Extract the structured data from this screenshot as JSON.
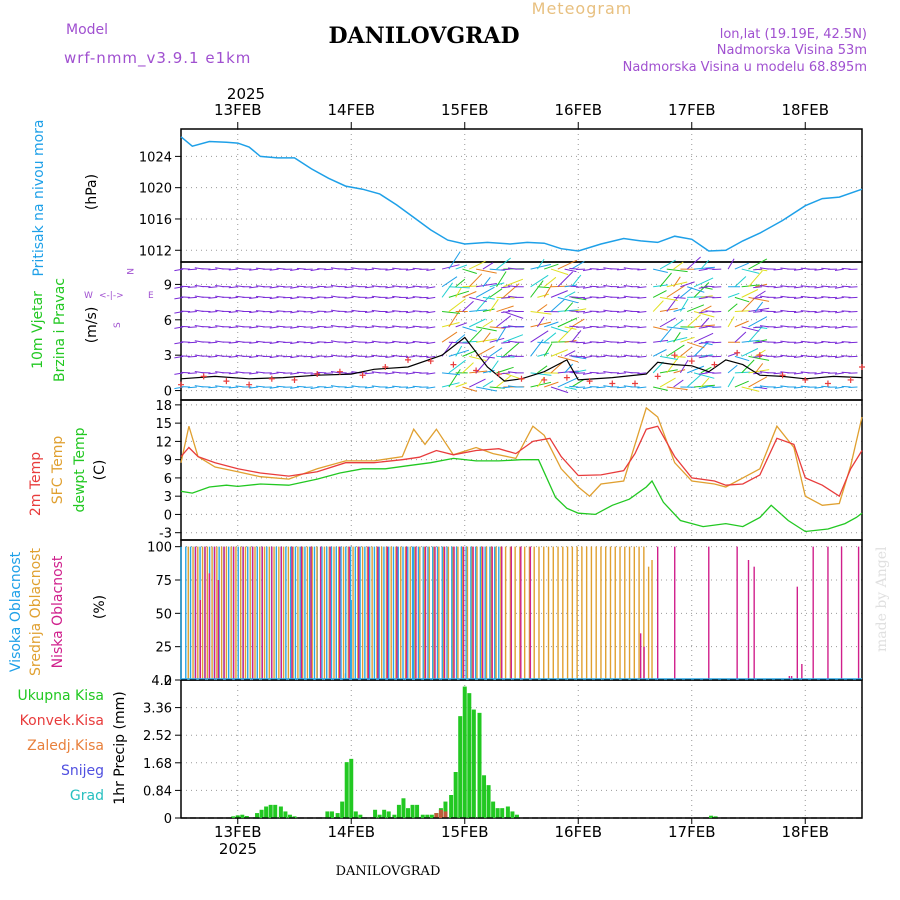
{
  "header": {
    "model_label": "Model",
    "model_name": "wrf-nmm_v3.9.1  e1km",
    "station": "DANILOVGRAD",
    "meteogram": "Meteogram",
    "lonlat": "lon,lat (19.19E, 42.5N)",
    "elevation": "Nadmorska Visina 53m",
    "elevation_model": "Nadmorska Visina u modelu 68.895m",
    "footer_station": "DANILOVGRAD",
    "watermark": "made by Angel"
  },
  "time_axis": {
    "year_label": "2025",
    "labels": [
      "13FEB",
      "14FEB",
      "15FEB",
      "16FEB",
      "17FEB",
      "18FEB"
    ],
    "label_days": [
      1,
      2,
      3,
      4,
      5,
      6
    ],
    "range_days": [
      0.5,
      6.5
    ]
  },
  "colors": {
    "pressure": "#1ea0e8",
    "temp2m": "#e83c3c",
    "sfc_temp": "#e0a030",
    "dewpt": "#22c822",
    "wind_barb": "#7a2ad8",
    "wind_speed": "#000000",
    "gust": "#e83c3c",
    "cloud_high": "#28a8e8",
    "cloud_mid": "#e0a030",
    "cloud_low": "#d0208c",
    "precip": "#22c822"
  },
  "chart_data": [
    {
      "type": "line",
      "panel": "pressure",
      "title": "Pritisak na nivou mora",
      "ylabel": "(hPa)",
      "yticks": [
        1012,
        1016,
        1020,
        1024
      ],
      "ylim": [
        1010.5,
        1027.5
      ],
      "series": [
        {
          "name": "Pritisak na nivou mora",
          "x": [
            0.5,
            0.6,
            0.75,
            0.9,
            1.0,
            1.1,
            1.2,
            1.35,
            1.5,
            1.65,
            1.8,
            1.95,
            2.1,
            2.25,
            2.4,
            2.55,
            2.7,
            2.85,
            3.0,
            3.2,
            3.4,
            3.55,
            3.7,
            3.85,
            4.0,
            4.2,
            4.4,
            4.55,
            4.7,
            4.85,
            5.0,
            5.15,
            5.3,
            5.45,
            5.6,
            5.8,
            6.0,
            6.15,
            6.3,
            6.5
          ],
          "y": [
            1026.5,
            1025.3,
            1025.9,
            1025.8,
            1025.7,
            1025.2,
            1024.0,
            1023.8,
            1023.8,
            1022.4,
            1021.2,
            1020.2,
            1019.8,
            1019.2,
            1017.8,
            1016.2,
            1014.6,
            1013.3,
            1012.8,
            1013.0,
            1012.8,
            1013.0,
            1012.9,
            1012.2,
            1011.9,
            1012.8,
            1013.5,
            1013.2,
            1013.0,
            1013.8,
            1013.4,
            1011.9,
            1012.0,
            1013.2,
            1014.2,
            1015.8,
            1017.7,
            1018.6,
            1018.8,
            1019.8
          ]
        }
      ]
    },
    {
      "type": "line",
      "panel": "wind",
      "title": "10m Vjetar Brzina i Pravac",
      "ylabel": "(m/s)",
      "compass": [
        "W",
        "<-|->",
        "E",
        "N",
        "S"
      ],
      "yticks": [
        0,
        3,
        6,
        9
      ],
      "ylim": [
        -0.8,
        10.9
      ],
      "series": [
        {
          "name": "Brzina",
          "x": [
            0.5,
            0.8,
            1.1,
            1.4,
            1.7,
            2.0,
            2.2,
            2.5,
            2.8,
            3.0,
            3.2,
            3.35,
            3.5,
            3.7,
            3.9,
            4.0,
            4.3,
            4.6,
            4.7,
            4.85,
            5.0,
            5.15,
            5.3,
            5.45,
            5.6,
            5.8,
            6.0,
            6.25,
            6.5
          ],
          "y": [
            1.0,
            1.2,
            1.0,
            1.1,
            1.3,
            1.4,
            1.8,
            2.0,
            3.0,
            4.5,
            2.0,
            0.8,
            1.0,
            1.6,
            2.6,
            0.9,
            1.1,
            1.4,
            2.4,
            2.2,
            2.1,
            1.6,
            2.6,
            2.2,
            1.3,
            1.2,
            1.0,
            1.2,
            1.1
          ]
        },
        {
          "name": "Udari",
          "x": [
            0.5,
            0.7,
            0.9,
            1.1,
            1.3,
            1.5,
            1.7,
            1.9,
            2.1,
            2.3,
            2.5,
            2.7,
            2.9,
            3.1,
            3.3,
            3.5,
            3.7,
            3.9,
            4.1,
            4.3,
            4.5,
            4.7,
            4.85,
            5.0,
            5.2,
            5.4,
            5.6,
            5.8,
            6.0,
            6.2,
            6.4,
            6.5
          ],
          "y": [
            0.5,
            1.2,
            0.8,
            0.5,
            1.0,
            0.9,
            1.4,
            1.6,
            1.3,
            2.0,
            2.6,
            2.5,
            2.2,
            1.7,
            1.4,
            1.0,
            0.9,
            1.1,
            0.8,
            0.6,
            0.6,
            1.2,
            3.0,
            2.5,
            2.2,
            3.2,
            3.0,
            1.3,
            0.9,
            0.6,
            0.9,
            2.0
          ]
        }
      ]
    },
    {
      "type": "line",
      "panel": "temperature",
      "title": "2m Temp / SFC Temp / dewpt Temp",
      "ylabel": "(C)",
      "yticks": [
        -3,
        0,
        3,
        6,
        9,
        12,
        15,
        18
      ],
      "ylim": [
        -4.2,
        18.8
      ],
      "series": [
        {
          "name": "2m Temp",
          "x": [
            0.5,
            0.57,
            0.65,
            0.8,
            1.0,
            1.2,
            1.45,
            1.7,
            1.95,
            2.2,
            2.45,
            2.6,
            2.75,
            2.9,
            3.1,
            3.3,
            3.45,
            3.6,
            3.75,
            3.85,
            4.0,
            4.2,
            4.4,
            4.5,
            4.6,
            4.7,
            4.85,
            5.0,
            5.2,
            5.3,
            5.45,
            5.6,
            5.75,
            5.9,
            6.0,
            6.15,
            6.3,
            6.4,
            6.5
          ],
          "y": [
            9.5,
            11.0,
            9.5,
            8.5,
            7.5,
            6.8,
            6.3,
            7.0,
            8.5,
            8.5,
            9.0,
            9.4,
            10.5,
            9.8,
            10.5,
            10.8,
            10.0,
            12.0,
            12.5,
            9.5,
            6.4,
            6.5,
            7.2,
            10.0,
            14.0,
            14.5,
            9.5,
            6.0,
            5.5,
            4.8,
            5.0,
            6.5,
            12.5,
            11.5,
            6.0,
            4.8,
            3.0,
            7.5,
            10.5
          ]
        },
        {
          "name": "SFC Temp",
          "x": [
            0.5,
            0.57,
            0.65,
            0.8,
            1.0,
            1.2,
            1.45,
            1.7,
            1.95,
            2.2,
            2.45,
            2.55,
            2.65,
            2.75,
            2.9,
            3.1,
            3.25,
            3.45,
            3.6,
            3.7,
            3.85,
            4.0,
            4.1,
            4.2,
            4.4,
            4.5,
            4.6,
            4.7,
            4.85,
            5.0,
            5.2,
            5.3,
            5.45,
            5.6,
            5.75,
            5.9,
            6.0,
            6.15,
            6.3,
            6.4,
            6.5
          ],
          "y": [
            8.5,
            14.5,
            9.5,
            7.8,
            7.0,
            6.2,
            5.8,
            7.5,
            8.8,
            8.8,
            9.5,
            14.0,
            11.5,
            14.0,
            9.8,
            11.0,
            10.0,
            9.2,
            14.5,
            13.0,
            7.5,
            4.5,
            3.0,
            5.0,
            5.5,
            11.5,
            17.5,
            16.0,
            8.5,
            5.5,
            5.0,
            4.5,
            6.0,
            7.5,
            14.5,
            11.0,
            3.0,
            1.5,
            1.8,
            8.0,
            16.0
          ]
        },
        {
          "name": "dewpt Temp",
          "x": [
            0.5,
            0.6,
            0.75,
            0.9,
            1.0,
            1.2,
            1.45,
            1.7,
            1.9,
            2.1,
            2.3,
            2.5,
            2.7,
            2.9,
            3.1,
            3.3,
            3.5,
            3.65,
            3.8,
            3.9,
            4.0,
            4.15,
            4.3,
            4.45,
            4.6,
            4.65,
            4.75,
            4.9,
            5.1,
            5.3,
            5.45,
            5.6,
            5.7,
            5.85,
            6.0,
            6.2,
            6.35,
            6.45,
            6.5
          ],
          "y": [
            3.8,
            3.5,
            4.5,
            4.8,
            4.6,
            5.0,
            4.8,
            5.8,
            6.8,
            7.5,
            7.5,
            8.0,
            8.5,
            9.2,
            8.8,
            8.8,
            9.0,
            9.0,
            2.8,
            1.0,
            0.2,
            0.0,
            1.5,
            2.5,
            4.5,
            5.5,
            2.0,
            -1.0,
            -2.0,
            -1.5,
            -2.0,
            -0.5,
            1.5,
            -1.0,
            -2.8,
            -2.4,
            -1.5,
            -0.5,
            0.2
          ]
        }
      ]
    },
    {
      "type": "bar",
      "panel": "cloud",
      "title": "Visoka Oblacnost / Srednja Oblacnost / Niska Oblacnost",
      "ylabel": "(%)",
      "yticks": [
        0,
        25,
        50,
        75,
        100
      ],
      "ylim": [
        0,
        105
      ],
      "series": [
        {
          "name": "Visoka Oblacnost",
          "segments": [
            {
              "from": 0.5,
              "to": 1.7,
              "step": 0.042,
              "value": 100
            },
            {
              "from": 1.7,
              "to": 2.55,
              "step": 0.042,
              "value": 100
            },
            {
              "from": 2.55,
              "to": 3.3,
              "step": 0.042,
              "value": 100
            }
          ],
          "points": [
            {
              "x": 1.95,
              "value": 5
            },
            {
              "x": 2.0,
              "value": 60
            },
            {
              "x": 3.3,
              "value": 100
            }
          ]
        },
        {
          "name": "Srednja Oblacnost",
          "segments": [
            {
              "from": 0.55,
              "to": 1.7,
              "step": 0.042,
              "value": 100
            },
            {
              "from": 1.75,
              "to": 4.6,
              "step": 0.042,
              "value": 100
            }
          ],
          "points": [
            {
              "x": 4.62,
              "value": 85
            },
            {
              "x": 4.65,
              "value": 90
            }
          ]
        },
        {
          "name": "Niska Oblacnost",
          "segments": [
            {
              "from": 0.6,
              "to": 1.4,
              "step": 0.084,
              "value": 100
            },
            {
              "from": 1.45,
              "to": 3.6,
              "step": 0.084,
              "value": 100
            }
          ],
          "points": [
            {
              "x": 0.67,
              "value": 60
            },
            {
              "x": 0.75,
              "value": 80
            },
            {
              "x": 0.83,
              "value": 75
            },
            {
              "x": 4.55,
              "value": 35
            },
            {
              "x": 4.58,
              "value": 25
            },
            {
              "x": 4.7,
              "value": 100
            },
            {
              "x": 4.85,
              "value": 100
            },
            {
              "x": 5.15,
              "value": 100
            },
            {
              "x": 5.4,
              "value": 100
            },
            {
              "x": 5.5,
              "value": 90
            },
            {
              "x": 5.55,
              "value": 85
            },
            {
              "x": 5.86,
              "value": 3
            },
            {
              "x": 5.88,
              "value": 3
            },
            {
              "x": 5.93,
              "value": 70
            },
            {
              "x": 5.97,
              "value": 12
            },
            {
              "x": 6.07,
              "value": 100
            },
            {
              "x": 6.2,
              "value": 100
            },
            {
              "x": 6.32,
              "value": 100
            },
            {
              "x": 6.47,
              "value": 100
            }
          ]
        }
      ]
    },
    {
      "type": "bar",
      "panel": "precip",
      "title": "Ukupna Kisa / Konvek.Kisa / Zaledj.Kisa / Snijeg / Grad",
      "ylabel": "1hr Precip (mm)",
      "yticks": [
        0,
        0.84,
        1.68,
        2.52,
        3.36,
        4.2
      ],
      "ylim": [
        0,
        4.2
      ],
      "legend": [
        "Ukupna Kisa",
        "Konvek.Kisa",
        "Zaledj.Kisa",
        "Snijeg",
        "Grad"
      ],
      "series": [
        {
          "name": "Ukupna Kisa",
          "x": [
            0.96,
            1.0,
            1.04,
            1.08,
            1.17,
            1.21,
            1.25,
            1.29,
            1.33,
            1.38,
            1.42,
            1.46,
            1.5,
            1.79,
            1.83,
            1.88,
            1.92,
            1.96,
            2.0,
            2.04,
            2.08,
            2.21,
            2.25,
            2.29,
            2.33,
            2.38,
            2.42,
            2.46,
            2.5,
            2.54,
            2.58,
            2.63,
            2.67,
            2.71,
            2.75,
            2.79,
            2.83,
            2.88,
            2.92,
            2.96,
            3.0,
            3.04,
            3.08,
            3.13,
            3.17,
            3.21,
            3.25,
            3.29,
            3.33,
            3.38,
            3.42,
            3.46,
            5.17,
            5.21
          ],
          "y": [
            0.05,
            0.08,
            0.1,
            0.06,
            0.15,
            0.25,
            0.35,
            0.4,
            0.4,
            0.35,
            0.2,
            0.1,
            0.05,
            0.2,
            0.2,
            0.15,
            0.5,
            1.7,
            1.8,
            0.2,
            0.1,
            0.25,
            0.1,
            0.25,
            0.2,
            0.1,
            0.4,
            0.6,
            0.3,
            0.4,
            0.4,
            0.1,
            0.1,
            0.1,
            0.15,
            0.3,
            0.5,
            0.7,
            1.4,
            3.1,
            4.0,
            3.8,
            3.3,
            3.2,
            1.3,
            1.0,
            0.5,
            0.3,
            0.3,
            0.35,
            0.2,
            0.1,
            0.07,
            0.05
          ]
        },
        {
          "name": "Konvek.Kisa",
          "x": [
            2.75,
            2.79,
            2.83
          ],
          "y": [
            0.15,
            0.25,
            0.2
          ]
        }
      ]
    }
  ]
}
